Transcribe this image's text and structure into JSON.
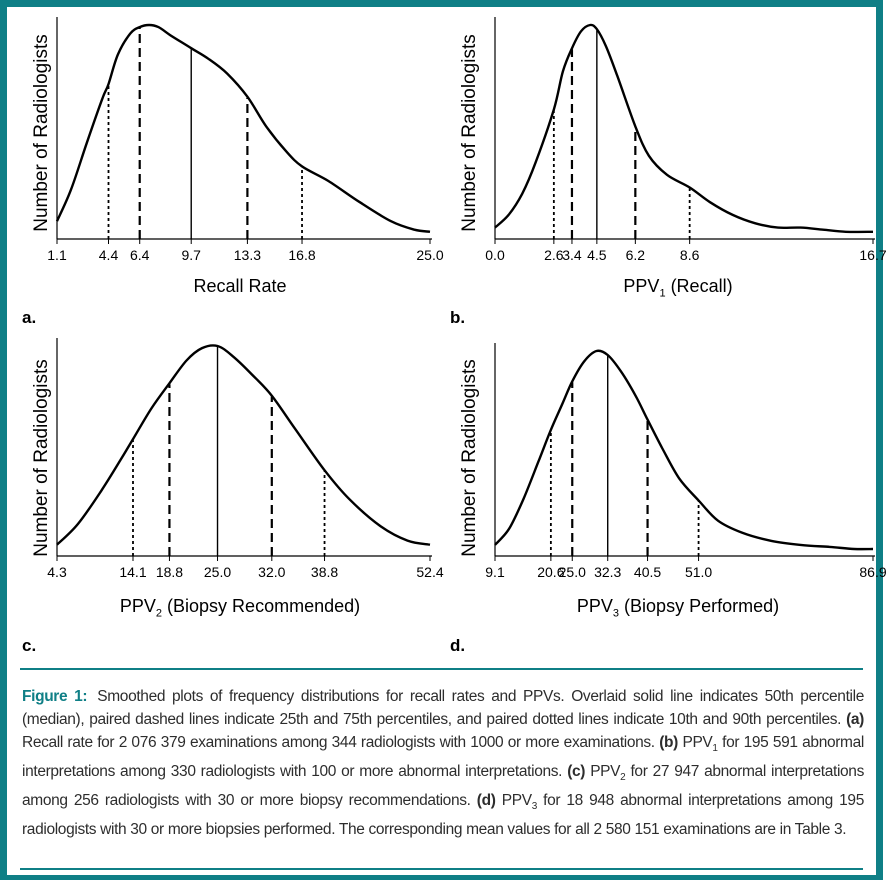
{
  "ylabel": "Number of Radiologists",
  "colors": {
    "frame": "#0f7f86",
    "caption_text": "#2d2d2d"
  },
  "panels": [
    {
      "letter": "a.",
      "xlabel_main": "Recall Rate",
      "xlabel_sub": "",
      "xlabel_suffix": "",
      "min": 1.1,
      "max": 25.0,
      "ticks": [
        "1.1",
        "4.4",
        "6.4",
        "9.7",
        "13.3",
        "16.8",
        "25.0"
      ]
    },
    {
      "letter": "b.",
      "xlabel_main": "PPV",
      "xlabel_sub": "1",
      "xlabel_suffix": " (Recall)",
      "min": 0.0,
      "max": 16.7,
      "ticks": [
        "0.0",
        "2.6",
        "3.4",
        "4.5",
        "6.2",
        "8.6",
        "16.7"
      ]
    },
    {
      "letter": "c.",
      "xlabel_main": "PPV",
      "xlabel_sub": "2",
      "xlabel_suffix": " (Biopsy Recommended)",
      "min": 4.3,
      "max": 52.4,
      "ticks": [
        "4.3",
        "14.1",
        "18.8",
        "25.0",
        "32.0",
        "38.8",
        "52.4"
      ]
    },
    {
      "letter": "d.",
      "xlabel_main": "PPV",
      "xlabel_sub": "3",
      "xlabel_suffix": " (Biopsy Performed)",
      "min": 9.1,
      "max": 86.9,
      "ticks": [
        "9.1",
        "20.6",
        "25.0",
        "32.3",
        "40.5",
        "51.0",
        "86.9"
      ]
    }
  ],
  "chart_data": [
    {
      "type": "line",
      "xlabel": "Recall Rate",
      "ylabel": "Number of Radiologists",
      "xlim": [
        1.1,
        25.0
      ],
      "percentiles": {
        "p10": 4.4,
        "p25": 6.4,
        "p50": 9.7,
        "p75": 13.3,
        "p90": 16.8
      },
      "curve": {
        "x": [
          1.1,
          2.0,
          3.0,
          4.0,
          4.4,
          5.0,
          5.8,
          6.4,
          7.0,
          7.6,
          8.4,
          9.7,
          10.8,
          12.0,
          13.3,
          14.5,
          15.8,
          16.8,
          18.5,
          20.5,
          22.5,
          24.0,
          25.0
        ],
        "y": [
          0.07,
          0.22,
          0.44,
          0.65,
          0.72,
          0.86,
          0.96,
          0.99,
          1.0,
          0.99,
          0.95,
          0.89,
          0.84,
          0.77,
          0.66,
          0.52,
          0.4,
          0.33,
          0.26,
          0.16,
          0.07,
          0.03,
          0.02
        ]
      }
    },
    {
      "type": "line",
      "xlabel": "PPV1 (Recall)",
      "ylabel": "Number of Radiologists",
      "xlim": [
        0.0,
        16.7
      ],
      "percentiles": {
        "p10": 2.6,
        "p25": 3.4,
        "p50": 4.5,
        "p75": 6.2,
        "p90": 8.6
      },
      "curve": {
        "x": [
          0.0,
          0.6,
          1.2,
          1.8,
          2.6,
          3.0,
          3.4,
          3.8,
          4.2,
          4.5,
          4.9,
          5.4,
          6.2,
          6.8,
          7.6,
          8.6,
          9.5,
          10.5,
          11.5,
          12.5,
          13.5,
          14.5,
          15.5,
          16.7
        ],
        "y": [
          0.04,
          0.1,
          0.2,
          0.35,
          0.6,
          0.78,
          0.89,
          0.97,
          1.0,
          0.98,
          0.9,
          0.76,
          0.52,
          0.38,
          0.29,
          0.23,
          0.16,
          0.1,
          0.06,
          0.04,
          0.04,
          0.03,
          0.02,
          0.02
        ]
      }
    },
    {
      "type": "line",
      "xlabel": "PPV2 (Biopsy Recommended)",
      "ylabel": "Number of Radiologists",
      "xlim": [
        4.3,
        52.4
      ],
      "percentiles": {
        "p10": 14.1,
        "p25": 18.8,
        "p50": 25.0,
        "p75": 32.0,
        "p90": 38.8
      },
      "curve": {
        "x": [
          4.3,
          7.0,
          10.0,
          12.5,
          14.1,
          16.5,
          18.8,
          21.0,
          23.0,
          25.0,
          27.0,
          29.5,
          32.0,
          35.0,
          38.8,
          42.0,
          46.0,
          49.5,
          52.4
        ],
        "y": [
          0.04,
          0.14,
          0.3,
          0.45,
          0.55,
          0.7,
          0.82,
          0.93,
          0.99,
          1.0,
          0.95,
          0.86,
          0.76,
          0.6,
          0.4,
          0.26,
          0.13,
          0.06,
          0.04
        ]
      }
    },
    {
      "type": "line",
      "xlabel": "PPV3 (Biopsy Performed)",
      "ylabel": "Number of Radiologists",
      "xlim": [
        9.1,
        86.9
      ],
      "percentiles": {
        "p10": 20.6,
        "p25": 25.0,
        "p50": 32.3,
        "p75": 40.5,
        "p90": 51.0
      },
      "curve": {
        "x": [
          9.1,
          12.0,
          15.0,
          18.0,
          20.6,
          23.0,
          25.0,
          27.5,
          30.0,
          32.3,
          35.0,
          38.0,
          40.5,
          43.5,
          47.0,
          51.0,
          55.0,
          60.0,
          66.0,
          72.0,
          78.0,
          83.0,
          86.9
        ],
        "y": [
          0.04,
          0.12,
          0.27,
          0.45,
          0.61,
          0.74,
          0.85,
          0.95,
          1.0,
          0.98,
          0.9,
          0.78,
          0.66,
          0.52,
          0.37,
          0.26,
          0.16,
          0.1,
          0.06,
          0.04,
          0.03,
          0.02,
          0.02
        ]
      }
    }
  ],
  "caption": {
    "label": "Figure 1:",
    "intro": "Smoothed plots of frequency distributions for recall rates and PPVs. Overlaid solid line indicates 50th percentile (median), paired dashed lines indicate 25th and 75th percentiles, and paired dotted lines indicate 10th and 90th percentiles.",
    "a_label": "(a)",
    "a_text": "Recall rate for 2 076 379 examinations among 344 radiologists with 1000 or more examinations.",
    "b_label": "(b)",
    "b_main": "PPV",
    "b_sub": "1",
    "b_text": "for 195 591 abnormal interpretations among 330 radiologists with 100 or more abnormal interpretations.",
    "c_label": "(c)",
    "c_main": "PPV",
    "c_sub": "2",
    "c_text": "for 27 947 abnormal interpretations among 256 radiologists with 30 or more biopsy recommendations.",
    "d_label": "(d)",
    "d_main": "PPV",
    "d_sub": "3",
    "d_text": "for 18 948 abnormal interpretations among 195 radiologists with 30 or more biopsies performed. The corresponding mean values for all 2 580 151 examinations are in Table 3."
  }
}
